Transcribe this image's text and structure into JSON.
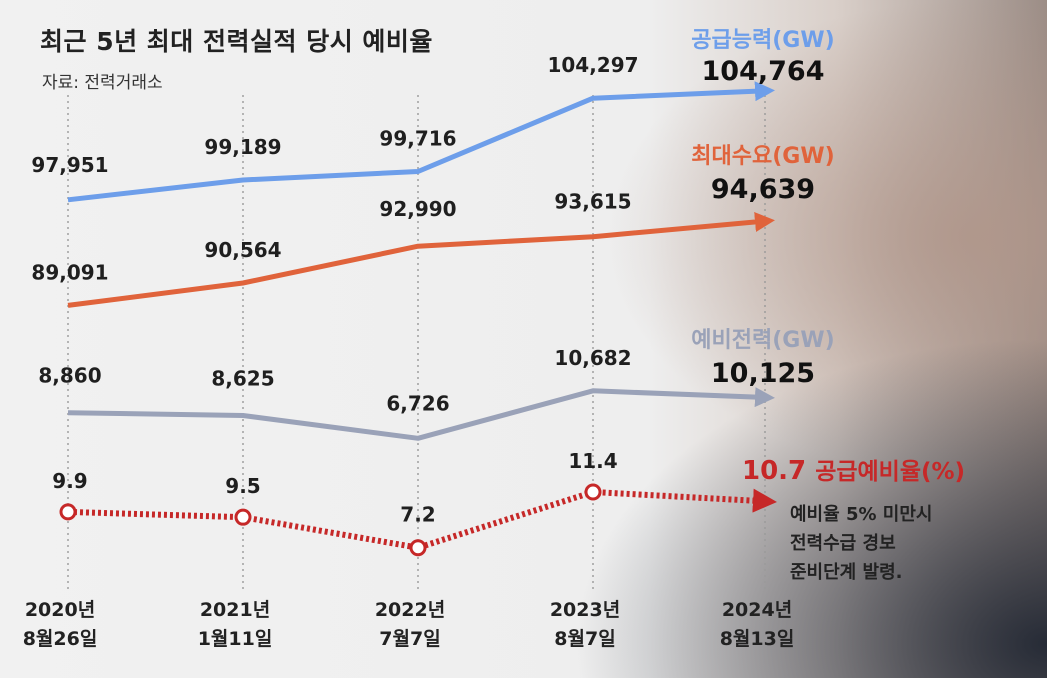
{
  "header": {
    "title": "최근 5년 최대 전력실적 당시 예비율",
    "source": "자료: 전력거래소"
  },
  "note_lines": [
    "예비율 5% 미만시",
    "전력수급 경보",
    "준비단계 발령."
  ],
  "chart_data": {
    "type": "line",
    "categories": [
      [
        "2020년",
        "8월26일"
      ],
      [
        "2021년",
        "1월11일"
      ],
      [
        "2022년",
        "7월7일"
      ],
      [
        "2023년",
        "8월7일"
      ],
      [
        "2024년",
        "8월13일"
      ]
    ],
    "series": [
      {
        "name": "공급능력(GW)",
        "values": [
          97951,
          99189,
          99716,
          104297,
          104764
        ],
        "labels": [
          "97,951",
          "99,189",
          "99,716",
          "104,297",
          "104,764"
        ],
        "color": "#6d9eea",
        "style": "solid"
      },
      {
        "name": "최대수요(GW)",
        "values": [
          89091,
          90564,
          92990,
          93615,
          94639
        ],
        "labels": [
          "89,091",
          "90,564",
          "92,990",
          "93,615",
          "94,639"
        ],
        "color": "#e0633b",
        "style": "solid"
      },
      {
        "name": "예비전력(GW)",
        "values": [
          8860,
          8625,
          6726,
          10682,
          10125
        ],
        "labels": [
          "8,860",
          "8,625",
          "6,726",
          "10,682",
          "10,125"
        ],
        "color": "#9aa2b8",
        "style": "solid"
      },
      {
        "name": "공급예비율(%)",
        "values": [
          9.9,
          9.5,
          7.2,
          11.4,
          10.7
        ],
        "labels": [
          "9.9",
          "9.5",
          "7.2",
          "11.4",
          "10.7"
        ],
        "color": "#c62828",
        "style": "dotted-markers"
      }
    ]
  }
}
